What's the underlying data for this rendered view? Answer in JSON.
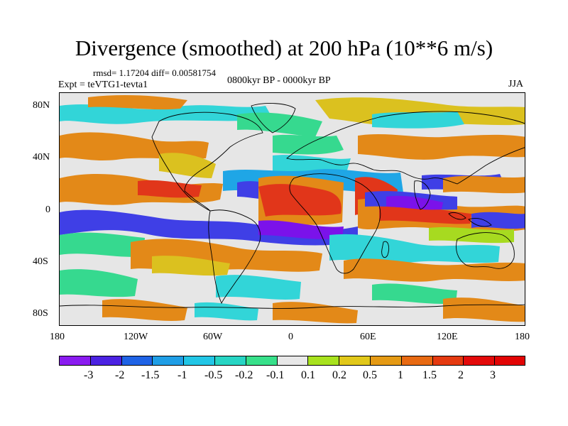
{
  "title": "Divergence (smoothed) at 200 hPa (10**6 m/s)",
  "stats": "rmsd= 1.17204 diff= 0.00581754",
  "experiment": "Expt = teVTG1-tevta1",
  "period": "0800kyr BP - 0000kyr BP",
  "season": "JJA",
  "lat_labels": [
    "80N",
    "40N",
    "0",
    "40S",
    "80S"
  ],
  "lon_labels": [
    "180",
    "120W",
    "60W",
    "0",
    "60E",
    "120E",
    "180"
  ],
  "colorbar": {
    "labels": [
      "-3",
      "-2",
      "-1.5",
      "-1",
      "-0.5",
      "-0.2",
      "-0.1",
      "0.1",
      "0.2",
      "0.5",
      "1",
      "1.5",
      "2",
      "3"
    ],
    "colors": [
      "#8a1bf0",
      "#4b22e2",
      "#1f63e6",
      "#1f9ee6",
      "#22c6e6",
      "#27d5c4",
      "#37e08a",
      "#e8e8e8",
      "#a8e21e",
      "#e1c81a",
      "#e59a14",
      "#e86a12",
      "#e53a10",
      "#e30a0a",
      "#e20404"
    ]
  },
  "field_colors": {
    "background": "#e6e6e6",
    "strong_negative": "#7b12ea",
    "negative": "#3f3fe6",
    "weak_negative": "#1fa6e6",
    "cyan": "#32d5d8",
    "green": "#36d98f",
    "yellowgreen": "#a7da20",
    "yellow": "#dbc11f",
    "orange": "#e38918",
    "red": "#e1361a",
    "coast": "#000000"
  }
}
